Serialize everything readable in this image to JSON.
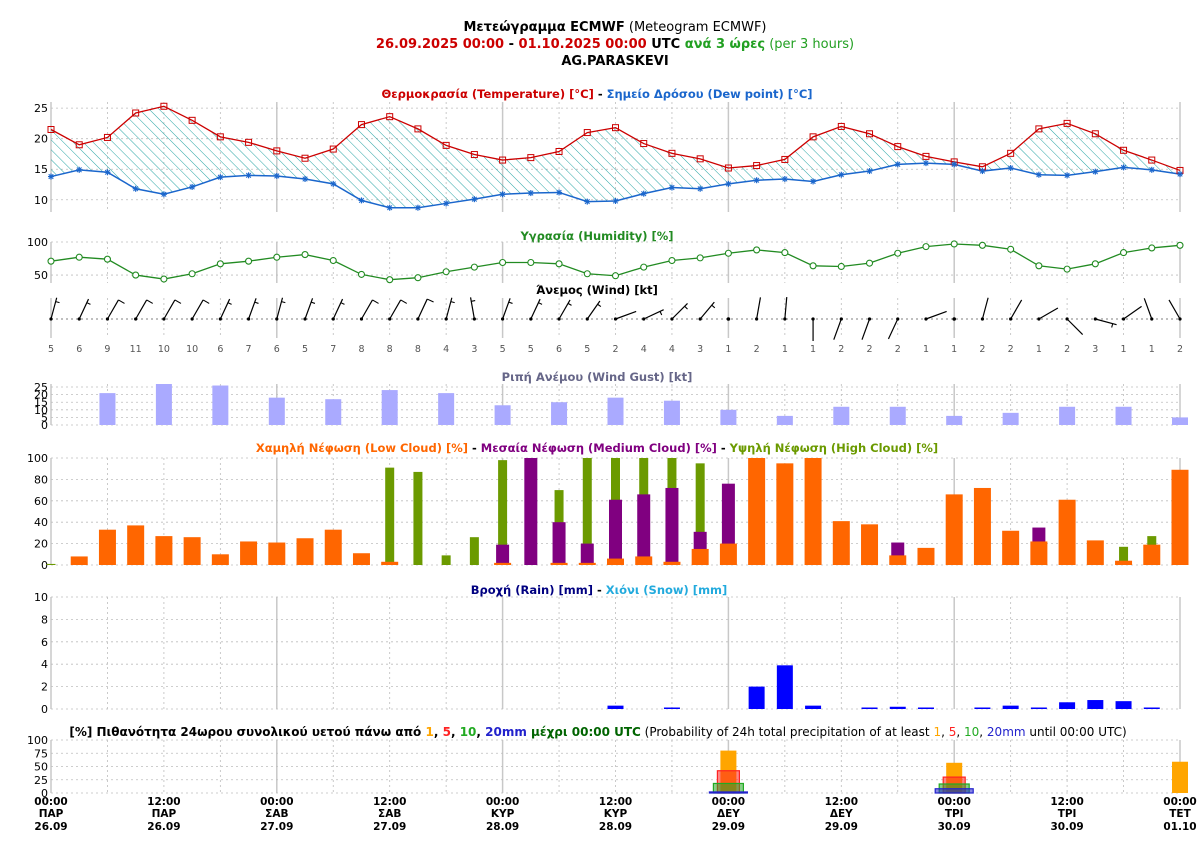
{
  "header": {
    "line1_bold": "Μετεώγραμμα ECMWF",
    "line1_rest": " (Meteogram ECMWF)",
    "line2_from": "26.09.2025 00:00",
    "line2_sep": " - ",
    "line2_to": "01.10.2025 00:00",
    "line2_utc": " UTC ",
    "line2_every": "ανά 3 ώρες",
    "line2_per": " (per 3 hours)",
    "line3": "AG.PARASKEVI"
  },
  "colors": {
    "temperature": "#cc0000",
    "dewpoint": "#1a66cc",
    "humidity": "#228b22",
    "gust": "#aaaaff",
    "low_cloud": "#ff6600",
    "medium_cloud": "#800080",
    "high_cloud": "#6b9a00",
    "rain": "#0000ff",
    "prob1": "#ffa500",
    "prob5": "#ff2222",
    "prob10": "#22aa22",
    "prob20": "#2222cc"
  },
  "titles": {
    "temp_a": "Θερμοκρασία (Temperature) [°C]",
    "temp_sep": " - ",
    "temp_b": "Σημείο Δρόσου (Dew point) [°C]",
    "humidity": "Υγρασία (Humidity) [%]",
    "wind": "Άνεμος (Wind) [kt]",
    "gust": "Ριπή Ανέμου (Wind Gust) [kt]",
    "cloud_a": "Χαμηλή Νέφωση (Low Cloud) [%]",
    "cloud_sep": " - ",
    "cloud_b": "Μεσαία Νέφωση (Medium Cloud) [%]",
    "cloud_c": "Υψηλή Νέφωση (High Cloud) [%]",
    "rain_a": "Βροχή (Rain) [mm]",
    "rain_sep": " - ",
    "rain_b": "Χιόνι (Snow) [mm]",
    "prob_pre": "[%] Πιθανότητα 24ωρου συνολικού υετού πάνω από ",
    "prob_v1": "1",
    "prob_c": ", ",
    "prob_v5": "5",
    "prob_v10": "10",
    "prob_v20": "20mm",
    "prob_mid": " μέχρι 00:00 UTC",
    "prob_en1": " (Probability of 24h total precipitation of at least ",
    "prob_en2": " until 00:00 UTC)"
  },
  "x_labels": [
    {
      "time": "00:00",
      "day": "ΠΑΡ",
      "date": "26.09"
    },
    {
      "time": "12:00",
      "day": "ΠΑΡ",
      "date": "26.09"
    },
    {
      "time": "00:00",
      "day": "ΣΑΒ",
      "date": "27.09"
    },
    {
      "time": "12:00",
      "day": "ΣΑΒ",
      "date": "27.09"
    },
    {
      "time": "00:00",
      "day": "ΚΥΡ",
      "date": "28.09"
    },
    {
      "time": "12:00",
      "day": "ΚΥΡ",
      "date": "28.09"
    },
    {
      "time": "00:00",
      "day": "ΔΕΥ",
      "date": "29.09"
    },
    {
      "time": "12:00",
      "day": "ΔΕΥ",
      "date": "29.09"
    },
    {
      "time": "00:00",
      "day": "ΤΡΙ",
      "date": "30.09"
    },
    {
      "time": "12:00",
      "day": "ΤΡΙ",
      "date": "30.09"
    },
    {
      "time": "00:00",
      "day": "ΤΕΤ",
      "date": "01.10"
    }
  ],
  "chart_data": [
    {
      "type": "line",
      "title": "Θερμοκρασία (Temperature) [°C] - Σημείο Δρόσου (Dew point) [°C]",
      "x_step_hours": 3,
      "ylim": [
        8,
        26
      ],
      "yticks": [
        10,
        15,
        20,
        25
      ],
      "series": [
        {
          "name": "Θερμοκρασία (Temperature) [°C]",
          "values": [
            21.5,
            19.0,
            20.2,
            24.2,
            25.3,
            23.0,
            20.3,
            19.4,
            18.0,
            16.8,
            18.3,
            22.3,
            23.6,
            21.6,
            18.9,
            17.4,
            16.5,
            16.9,
            17.9,
            21.0,
            21.8,
            19.2,
            17.6,
            16.7,
            15.2,
            15.6,
            16.6,
            20.3,
            22.0,
            20.8,
            18.7,
            17.1,
            16.2,
            15.4,
            17.6,
            21.6,
            22.5,
            20.8,
            18.1,
            16.5,
            14.8
          ]
        },
        {
          "name": "Σημείο Δρόσου (Dew point) [°C]",
          "values": [
            13.8,
            14.9,
            14.5,
            11.8,
            10.9,
            12.1,
            13.7,
            14.0,
            13.9,
            13.4,
            12.6,
            9.9,
            8.7,
            8.7,
            9.4,
            10.1,
            10.9,
            11.1,
            11.2,
            9.7,
            9.8,
            11.0,
            12.0,
            11.8,
            12.6,
            13.2,
            13.4,
            13.0,
            14.1,
            14.7,
            15.8,
            16.0,
            15.8,
            14.7,
            15.2,
            14.1,
            14.0,
            14.6,
            15.3,
            14.9,
            14.2
          ]
        }
      ]
    },
    {
      "type": "line",
      "title": "Υγρασία (Humidity) [%]",
      "x_step_hours": 3,
      "ylim": [
        38,
        100
      ],
      "yticks": [
        50,
        100
      ],
      "series": [
        {
          "name": "Υγρασία (Humidity) [%]",
          "values": [
            71,
            77,
            74,
            50,
            44,
            52,
            67,
            71,
            77,
            81,
            72,
            51,
            43,
            46,
            55,
            62,
            69,
            69,
            67,
            52,
            49,
            62,
            72,
            76,
            83,
            88,
            84,
            64,
            63,
            68,
            83,
            93,
            97,
            95,
            89,
            64,
            59,
            67,
            84,
            91,
            95
          ]
        }
      ]
    },
    {
      "type": "table",
      "title": "Άνεμος (Wind) [kt]",
      "x_step_hours": 3,
      "speed_kt": [
        5,
        6,
        9,
        11,
        10,
        10,
        6,
        7,
        6,
        5,
        7,
        8,
        8,
        8,
        4,
        3,
        5,
        5,
        6,
        5,
        2,
        4,
        4,
        3,
        1,
        2,
        1,
        1,
        2,
        2,
        2,
        1,
        1,
        2,
        2,
        1,
        2,
        3,
        1,
        1,
        2
      ],
      "direction_deg": [
        15,
        25,
        30,
        30,
        30,
        30,
        25,
        20,
        15,
        20,
        25,
        30,
        30,
        25,
        15,
        350,
        20,
        25,
        30,
        35,
        70,
        65,
        45,
        40,
        null,
        10,
        5,
        180,
        200,
        200,
        205,
        70,
        null,
        15,
        30,
        60,
        135,
        105,
        55,
        340,
        330
      ]
    },
    {
      "type": "bar",
      "title": "Ριπή Ανέμου (Wind Gust) [kt]",
      "x_step_hours": 6,
      "x_offset_hours": 6,
      "ylim": [
        0,
        27
      ],
      "yticks": [
        0,
        5,
        10,
        15,
        20,
        25
      ],
      "values": [
        21,
        27,
        26,
        18,
        17,
        23,
        21,
        13,
        15,
        18,
        16,
        10,
        6,
        12,
        12,
        6,
        8,
        12,
        12,
        5
      ]
    },
    {
      "type": "bar",
      "title": "Χαμηλή Νέφωση (Low Cloud) [%] - Μεσαία Νέφωση (Medium Cloud) [%] - Υψηλή Νέφωση (High Cloud) [%]",
      "x_step_hours": 3,
      "ylim": [
        0,
        100
      ],
      "yticks": [
        0,
        20,
        40,
        60,
        80,
        100
      ],
      "series": [
        {
          "name": "Υψηλή Νέφωση (High Cloud) [%]",
          "values": [
            1,
            0,
            0,
            0,
            0,
            0,
            0,
            0,
            0,
            0,
            0,
            0,
            91,
            87,
            9,
            26,
            98,
            0,
            70,
            100,
            100,
            100,
            100,
            95,
            0,
            0,
            0,
            0,
            0,
            0,
            0,
            0,
            0,
            0,
            0,
            0,
            0,
            0,
            17,
            27,
            0
          ]
        },
        {
          "name": "Μεσαία Νέφωση (Medium Cloud) [%]",
          "values": [
            0,
            0,
            0,
            0,
            0,
            0,
            0,
            0,
            0,
            0,
            0,
            0,
            0,
            0,
            0,
            0,
            19,
            100,
            40,
            20,
            61,
            66,
            72,
            31,
            76,
            0,
            0,
            0,
            0,
            0,
            21,
            0,
            0,
            0,
            0,
            35,
            0,
            0,
            0,
            0,
            0
          ]
        },
        {
          "name": "Χαμηλή Νέφωση (Low Cloud) [%]",
          "values": [
            0,
            8,
            33,
            37,
            27,
            26,
            10,
            22,
            21,
            25,
            33,
            11,
            3,
            0,
            0,
            0,
            2,
            0,
            2,
            2,
            6,
            8,
            3,
            15,
            20,
            100,
            95,
            100,
            41,
            38,
            9,
            16,
            66,
            72,
            32,
            22,
            61,
            23,
            4,
            19,
            89
          ]
        }
      ]
    },
    {
      "type": "bar",
      "title": "Βροχή (Rain) [mm] - Χιόνι (Snow) [mm]",
      "x_step_hours": 3,
      "ylim": [
        0,
        10
      ],
      "yticks": [
        0,
        2,
        4,
        6,
        8,
        10
      ],
      "series": [
        {
          "name": "Βροχή (Rain) [mm]",
          "values": [
            0,
            0,
            0,
            0,
            0,
            0,
            0,
            0,
            0,
            0,
            0,
            0,
            0,
            0,
            0,
            0,
            0,
            0,
            0,
            0,
            0.3,
            0,
            0.1,
            0,
            0,
            2.0,
            3.9,
            0.3,
            0,
            0.1,
            0.2,
            0.1,
            0,
            0.1,
            0.3,
            0.1,
            0.6,
            0.8,
            0.7,
            0.1,
            0
          ]
        },
        {
          "name": "Χιόνι (Snow) [mm]",
          "values": [
            0,
            0,
            0,
            0,
            0,
            0,
            0,
            0,
            0,
            0,
            0,
            0,
            0,
            0,
            0,
            0,
            0,
            0,
            0,
            0,
            0,
            0,
            0,
            0,
            0,
            0,
            0,
            0,
            0,
            0,
            0,
            0,
            0,
            0,
            0,
            0,
            0,
            0,
            0,
            0,
            0
          ]
        }
      ]
    },
    {
      "type": "bar",
      "title": "[%] Πιθανότητα 24ωρου συνολικού υετού πάνω από 1, 5, 10, 20mm μέχρι 00:00 UTC (Probability of 24h total precipitation of at least 1, 5, 10, 20mm until 00:00 UTC)",
      "categories": [
        "29.09 00:00",
        "30.09 00:00",
        "01.10 00:00"
      ],
      "category_hours": [
        72,
        96,
        120
      ],
      "ylim": [
        0,
        100
      ],
      "yticks": [
        0,
        25,
        50,
        75,
        100
      ],
      "series": [
        {
          "name": "1",
          "values": [
            80,
            57,
            59
          ]
        },
        {
          "name": "5",
          "values": [
            42,
            30,
            0
          ]
        },
        {
          "name": "10",
          "values": [
            18,
            17,
            0
          ]
        },
        {
          "name": "20",
          "values": [
            2,
            8,
            0
          ]
        }
      ]
    }
  ]
}
